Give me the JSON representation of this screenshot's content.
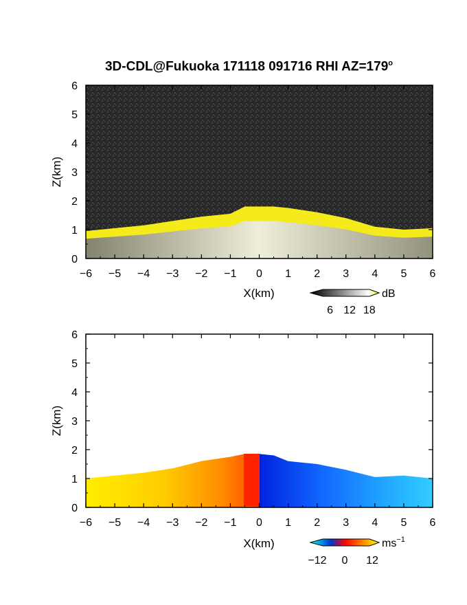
{
  "title": {
    "text": "3D-CDL@Fukuoka 171118 091716 RHI AZ=179",
    "degree": "o"
  },
  "chart_data": [
    {
      "type": "heatmap",
      "name": "reflectivity",
      "xlabel": "X(km)",
      "ylabel": "Z(km)",
      "xlim": [
        -6,
        6
      ],
      "ylim": [
        0,
        6
      ],
      "xticks": [
        "-6",
        "-5",
        "-4",
        "-3",
        "-2",
        "-1",
        "0",
        "1",
        "2",
        "3",
        "4",
        "5",
        "6"
      ],
      "yticks": [
        "0",
        "1",
        "2",
        "3",
        "4",
        "5",
        "6"
      ],
      "echo_top_km": [
        {
          "x": -6.0,
          "z": 0.95
        },
        {
          "x": -5.0,
          "z": 1.05
        },
        {
          "x": -4.0,
          "z": 1.15
        },
        {
          "x": -3.0,
          "z": 1.3
        },
        {
          "x": -2.0,
          "z": 1.45
        },
        {
          "x": -1.0,
          "z": 1.55
        },
        {
          "x": -0.5,
          "z": 1.8
        },
        {
          "x": 0.0,
          "z": 1.8
        },
        {
          "x": 0.5,
          "z": 1.8
        },
        {
          "x": 1.0,
          "z": 1.75
        },
        {
          "x": 2.0,
          "z": 1.6
        },
        {
          "x": 3.0,
          "z": 1.4
        },
        {
          "x": 4.0,
          "z": 1.1
        },
        {
          "x": 5.0,
          "z": 1.0
        },
        {
          "x": 6.0,
          "z": 1.05
        }
      ],
      "colorbar": {
        "ticks": [
          "6",
          "12",
          "18"
        ],
        "range": [
          0,
          21
        ],
        "unit": "dB",
        "colors": [
          "#000000",
          "#ffffff",
          "#f7f010"
        ]
      }
    },
    {
      "type": "heatmap",
      "name": "doppler_velocity",
      "xlabel": "X(km)",
      "ylabel": "Z(km)",
      "xlim": [
        -6,
        6
      ],
      "ylim": [
        0,
        6
      ],
      "xticks": [
        "-6",
        "-5",
        "-4",
        "-3",
        "-2",
        "-1",
        "0",
        "1",
        "2",
        "3",
        "4",
        "5",
        "6"
      ],
      "yticks": [
        "0",
        "1",
        "2",
        "3",
        "4",
        "5",
        "6"
      ],
      "echo_top_km": [
        {
          "x": -6.0,
          "z": 1.0
        },
        {
          "x": -5.0,
          "z": 1.1
        },
        {
          "x": -4.0,
          "z": 1.2
        },
        {
          "x": -3.0,
          "z": 1.35
        },
        {
          "x": -2.0,
          "z": 1.6
        },
        {
          "x": -1.0,
          "z": 1.75
        },
        {
          "x": -0.5,
          "z": 1.85
        },
        {
          "x": 0.0,
          "z": 1.85
        },
        {
          "x": 0.5,
          "z": 1.8
        },
        {
          "x": 1.0,
          "z": 1.6
        },
        {
          "x": 2.0,
          "z": 1.5
        },
        {
          "x": 3.0,
          "z": 1.3
        },
        {
          "x": 4.0,
          "z": 1.05
        },
        {
          "x": 5.0,
          "z": 1.1
        },
        {
          "x": 6.0,
          "z": 1.0
        }
      ],
      "colorbar": {
        "ticks": [
          "−12",
          "0",
          "12"
        ],
        "range": [
          -15,
          15
        ],
        "unit": "ms",
        "unit_exp": "−1",
        "colors": [
          "#00ffff",
          "#0033cc",
          "#ff0000",
          "#ffff00"
        ]
      }
    }
  ]
}
